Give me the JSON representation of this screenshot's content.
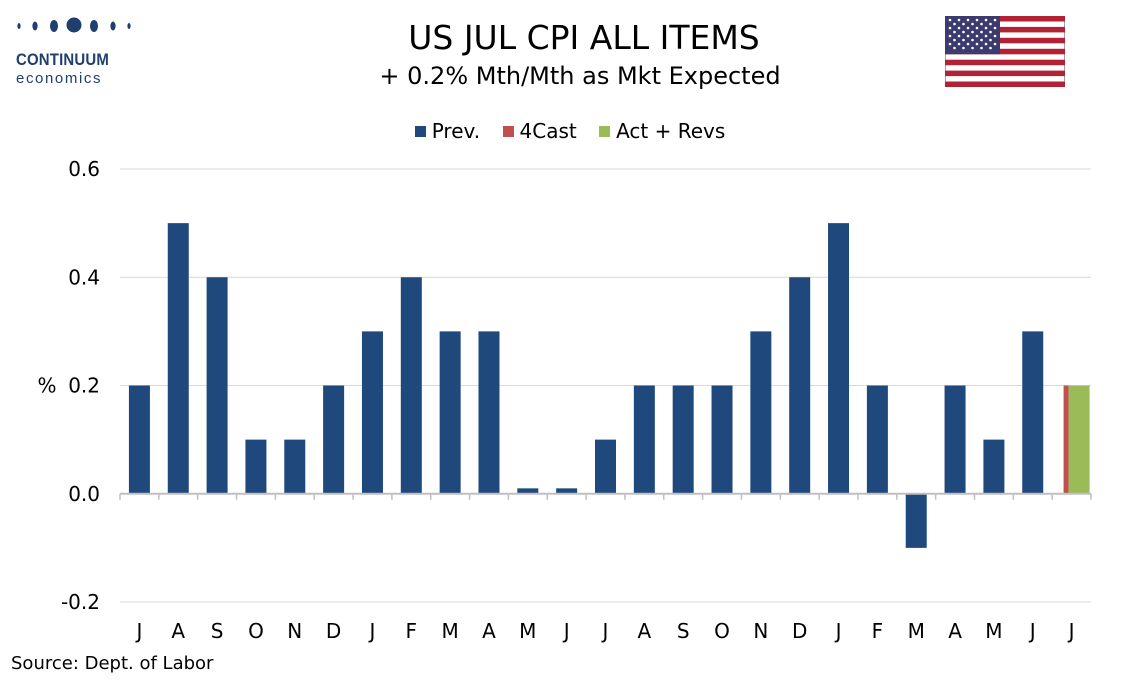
{
  "logo": {
    "line1": "CONTINUUM",
    "line2": "economics"
  },
  "flag": {
    "icon": "us-flag-icon"
  },
  "source": "Source: Dept. of Labor",
  "colors": {
    "prev": "#1f497d",
    "forecast": "#c0504d",
    "actual": "#9bbb59",
    "logo": "#1f3f6e"
  },
  "chart_data": {
    "type": "bar",
    "title": "US JUL CPI ALL ITEMS",
    "subtitle": "+ 0.2% Mth/Mth as Mkt Expected",
    "ylabel": "%",
    "ylim": [
      -0.2,
      0.6
    ],
    "yticks": [
      "0.6",
      "0.4",
      "0.2",
      "0.0",
      "-0.2"
    ],
    "ytick_values": [
      0.6,
      0.4,
      0.2,
      0.0,
      -0.2
    ],
    "grid": true,
    "legend_position": "top-center",
    "legend": [
      "Prev.",
      "4Cast",
      "Act + Revs"
    ],
    "categories": [
      "J",
      "A",
      "S",
      "O",
      "N",
      "D",
      "J",
      "F",
      "M",
      "A",
      "M",
      "J",
      "J",
      "A",
      "S",
      "O",
      "N",
      "D",
      "J",
      "F",
      "M",
      "A",
      "M",
      "J",
      "J"
    ],
    "series": [
      {
        "name": "Prev.",
        "color": "#1f497d",
        "values": [
          0.2,
          0.5,
          0.4,
          0.1,
          0.1,
          0.2,
          0.3,
          0.4,
          0.3,
          0.3,
          0.01,
          0.01,
          0.1,
          0.2,
          0.2,
          0.2,
          0.3,
          0.4,
          0.5,
          0.2,
          -0.1,
          0.2,
          0.1,
          0.3,
          null
        ]
      },
      {
        "name": "4Cast",
        "color": "#c0504d",
        "values": [
          null,
          null,
          null,
          null,
          null,
          null,
          null,
          null,
          null,
          null,
          null,
          null,
          null,
          null,
          null,
          null,
          null,
          null,
          null,
          null,
          null,
          null,
          null,
          null,
          0.2
        ]
      },
      {
        "name": "Act + Revs",
        "color": "#9bbb59",
        "values": [
          null,
          null,
          null,
          null,
          null,
          null,
          null,
          null,
          null,
          null,
          null,
          null,
          null,
          null,
          null,
          null,
          null,
          null,
          null,
          null,
          null,
          null,
          null,
          null,
          0.2
        ]
      }
    ]
  }
}
